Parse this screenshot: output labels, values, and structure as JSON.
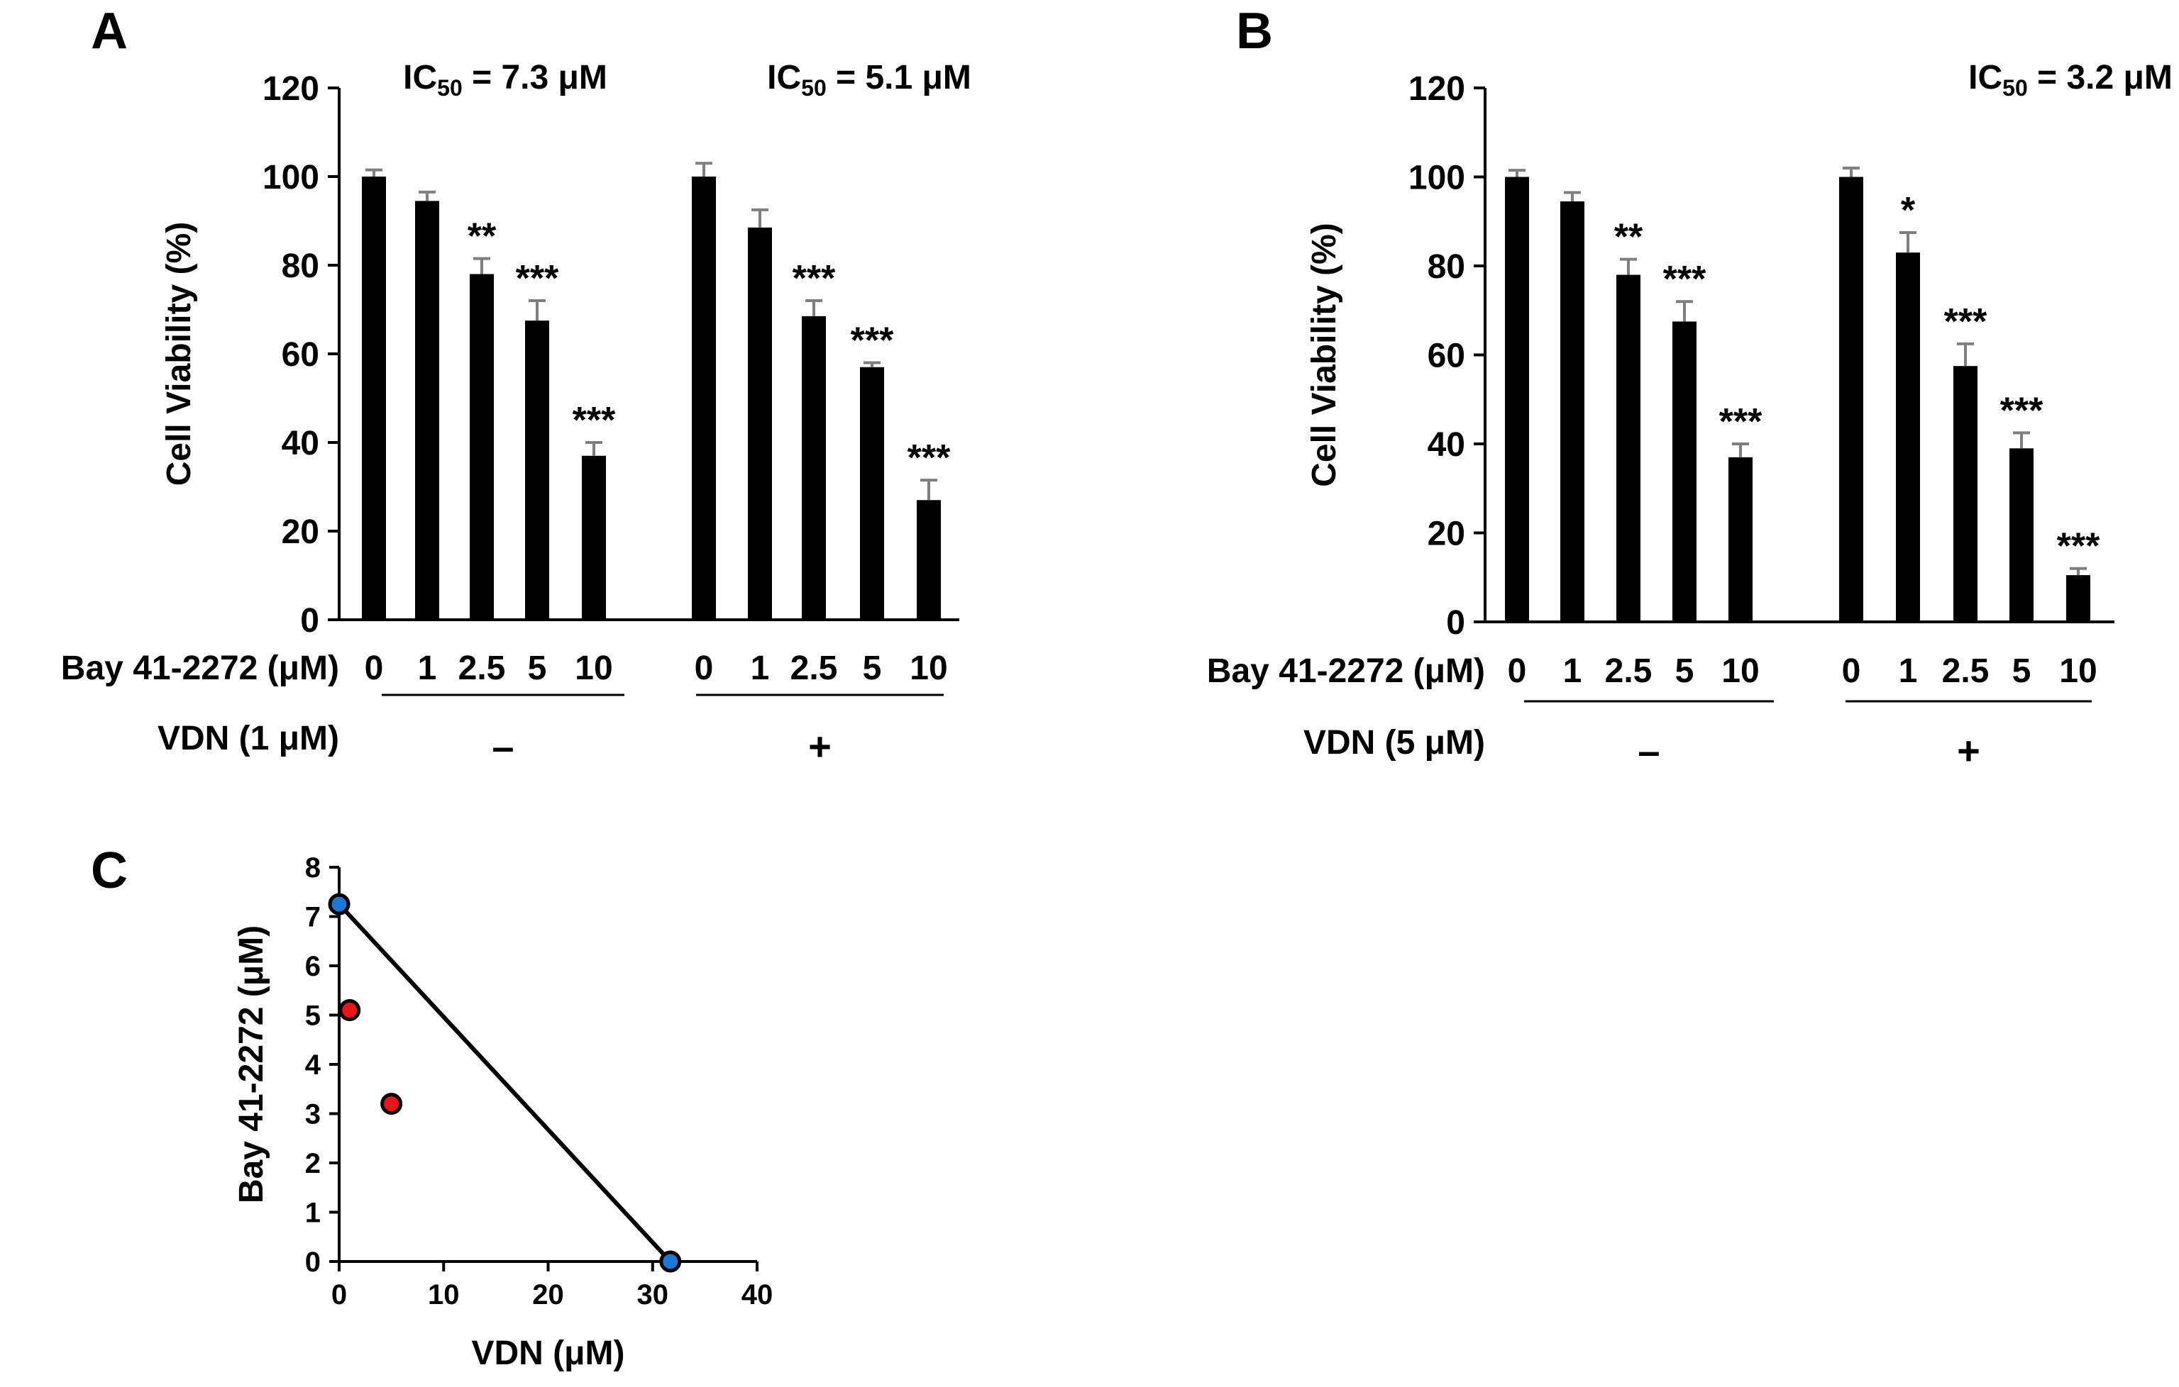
{
  "colors": {
    "bar": "#000000",
    "error_bar": "#7f7f7f",
    "blue_point": "#1f77d4",
    "red_point": "#e8151b"
  },
  "panel_labels": {
    "a": "A",
    "b": "B",
    "c": "C"
  },
  "chart_data": [
    {
      "panel": "A",
      "type": "bar",
      "ylabel": "Cell  Viability (%)",
      "ylim": [
        0,
        120
      ],
      "yticks": [
        "0",
        "20",
        "40",
        "60",
        "80",
        "100",
        "120"
      ],
      "ic50_labels": [
        {
          "prefix": "IC",
          "sub": "50",
          "rest": " = 7.3 μM"
        },
        {
          "prefix": "IC",
          "sub": "50",
          "rest": " = 5.1 μM"
        }
      ],
      "row1_label": "Bay 41-2272 (μM)",
      "row2_label": "VDN (1 μM)",
      "categories": [
        "0",
        "1",
        "2.5",
        "5",
        "10",
        "0",
        "1",
        "2.5",
        "5",
        "10"
      ],
      "values": [
        100,
        94.5,
        78,
        67.5,
        37,
        100,
        88.5,
        68.5,
        57,
        27
      ],
      "errors": [
        1.5,
        2,
        3.5,
        4.5,
        3,
        3,
        4,
        3.5,
        1,
        4.5
      ],
      "significance": [
        "",
        "",
        "**",
        "***",
        "***",
        "",
        "",
        "***",
        "***",
        "***"
      ],
      "group_signs": [
        "–",
        "+"
      ]
    },
    {
      "panel": "B",
      "type": "bar",
      "ylabel": "Cell  Viability (%)",
      "ylim": [
        0,
        120
      ],
      "yticks": [
        "0",
        "20",
        "40",
        "60",
        "80",
        "100",
        "120"
      ],
      "ic50_labels": [
        {
          "prefix": "IC",
          "sub": "50",
          "rest": " = 3.2 μM"
        }
      ],
      "row1_label": "Bay 41-2272 (μM)",
      "row2_label": "VDN (5 μM)",
      "categories": [
        "0",
        "1",
        "2.5",
        "5",
        "10",
        "0",
        "1",
        "2.5",
        "5",
        "10"
      ],
      "values": [
        100,
        94.5,
        78,
        67.5,
        37,
        100,
        83,
        57.5,
        39,
        10.5
      ],
      "errors": [
        1.5,
        2,
        3.5,
        4.5,
        3,
        2,
        4.5,
        5,
        3.5,
        1.5
      ],
      "significance": [
        "",
        "",
        "**",
        "***",
        "***",
        "",
        "*",
        "***",
        "***",
        "***"
      ],
      "group_signs": [
        "–",
        "+"
      ]
    },
    {
      "panel": "C",
      "type": "scatter",
      "xlabel": "VDN (μM)",
      "ylabel": "Bay 41-2272 (μM)",
      "xlim": [
        0,
        40
      ],
      "ylim": [
        0,
        8
      ],
      "xticks": [
        "0",
        "10",
        "20",
        "30",
        "40"
      ],
      "yticks": [
        "0",
        "1",
        "2",
        "3",
        "4",
        "5",
        "6",
        "7",
        "8"
      ],
      "line": {
        "x": [
          0,
          31.7
        ],
        "y": [
          7.25,
          0
        ]
      },
      "series": [
        {
          "name": "blue",
          "x": [
            0,
            31.7
          ],
          "y": [
            7.25,
            0
          ]
        },
        {
          "name": "red",
          "x": [
            1,
            5
          ],
          "y": [
            5.1,
            3.2
          ]
        }
      ]
    }
  ]
}
